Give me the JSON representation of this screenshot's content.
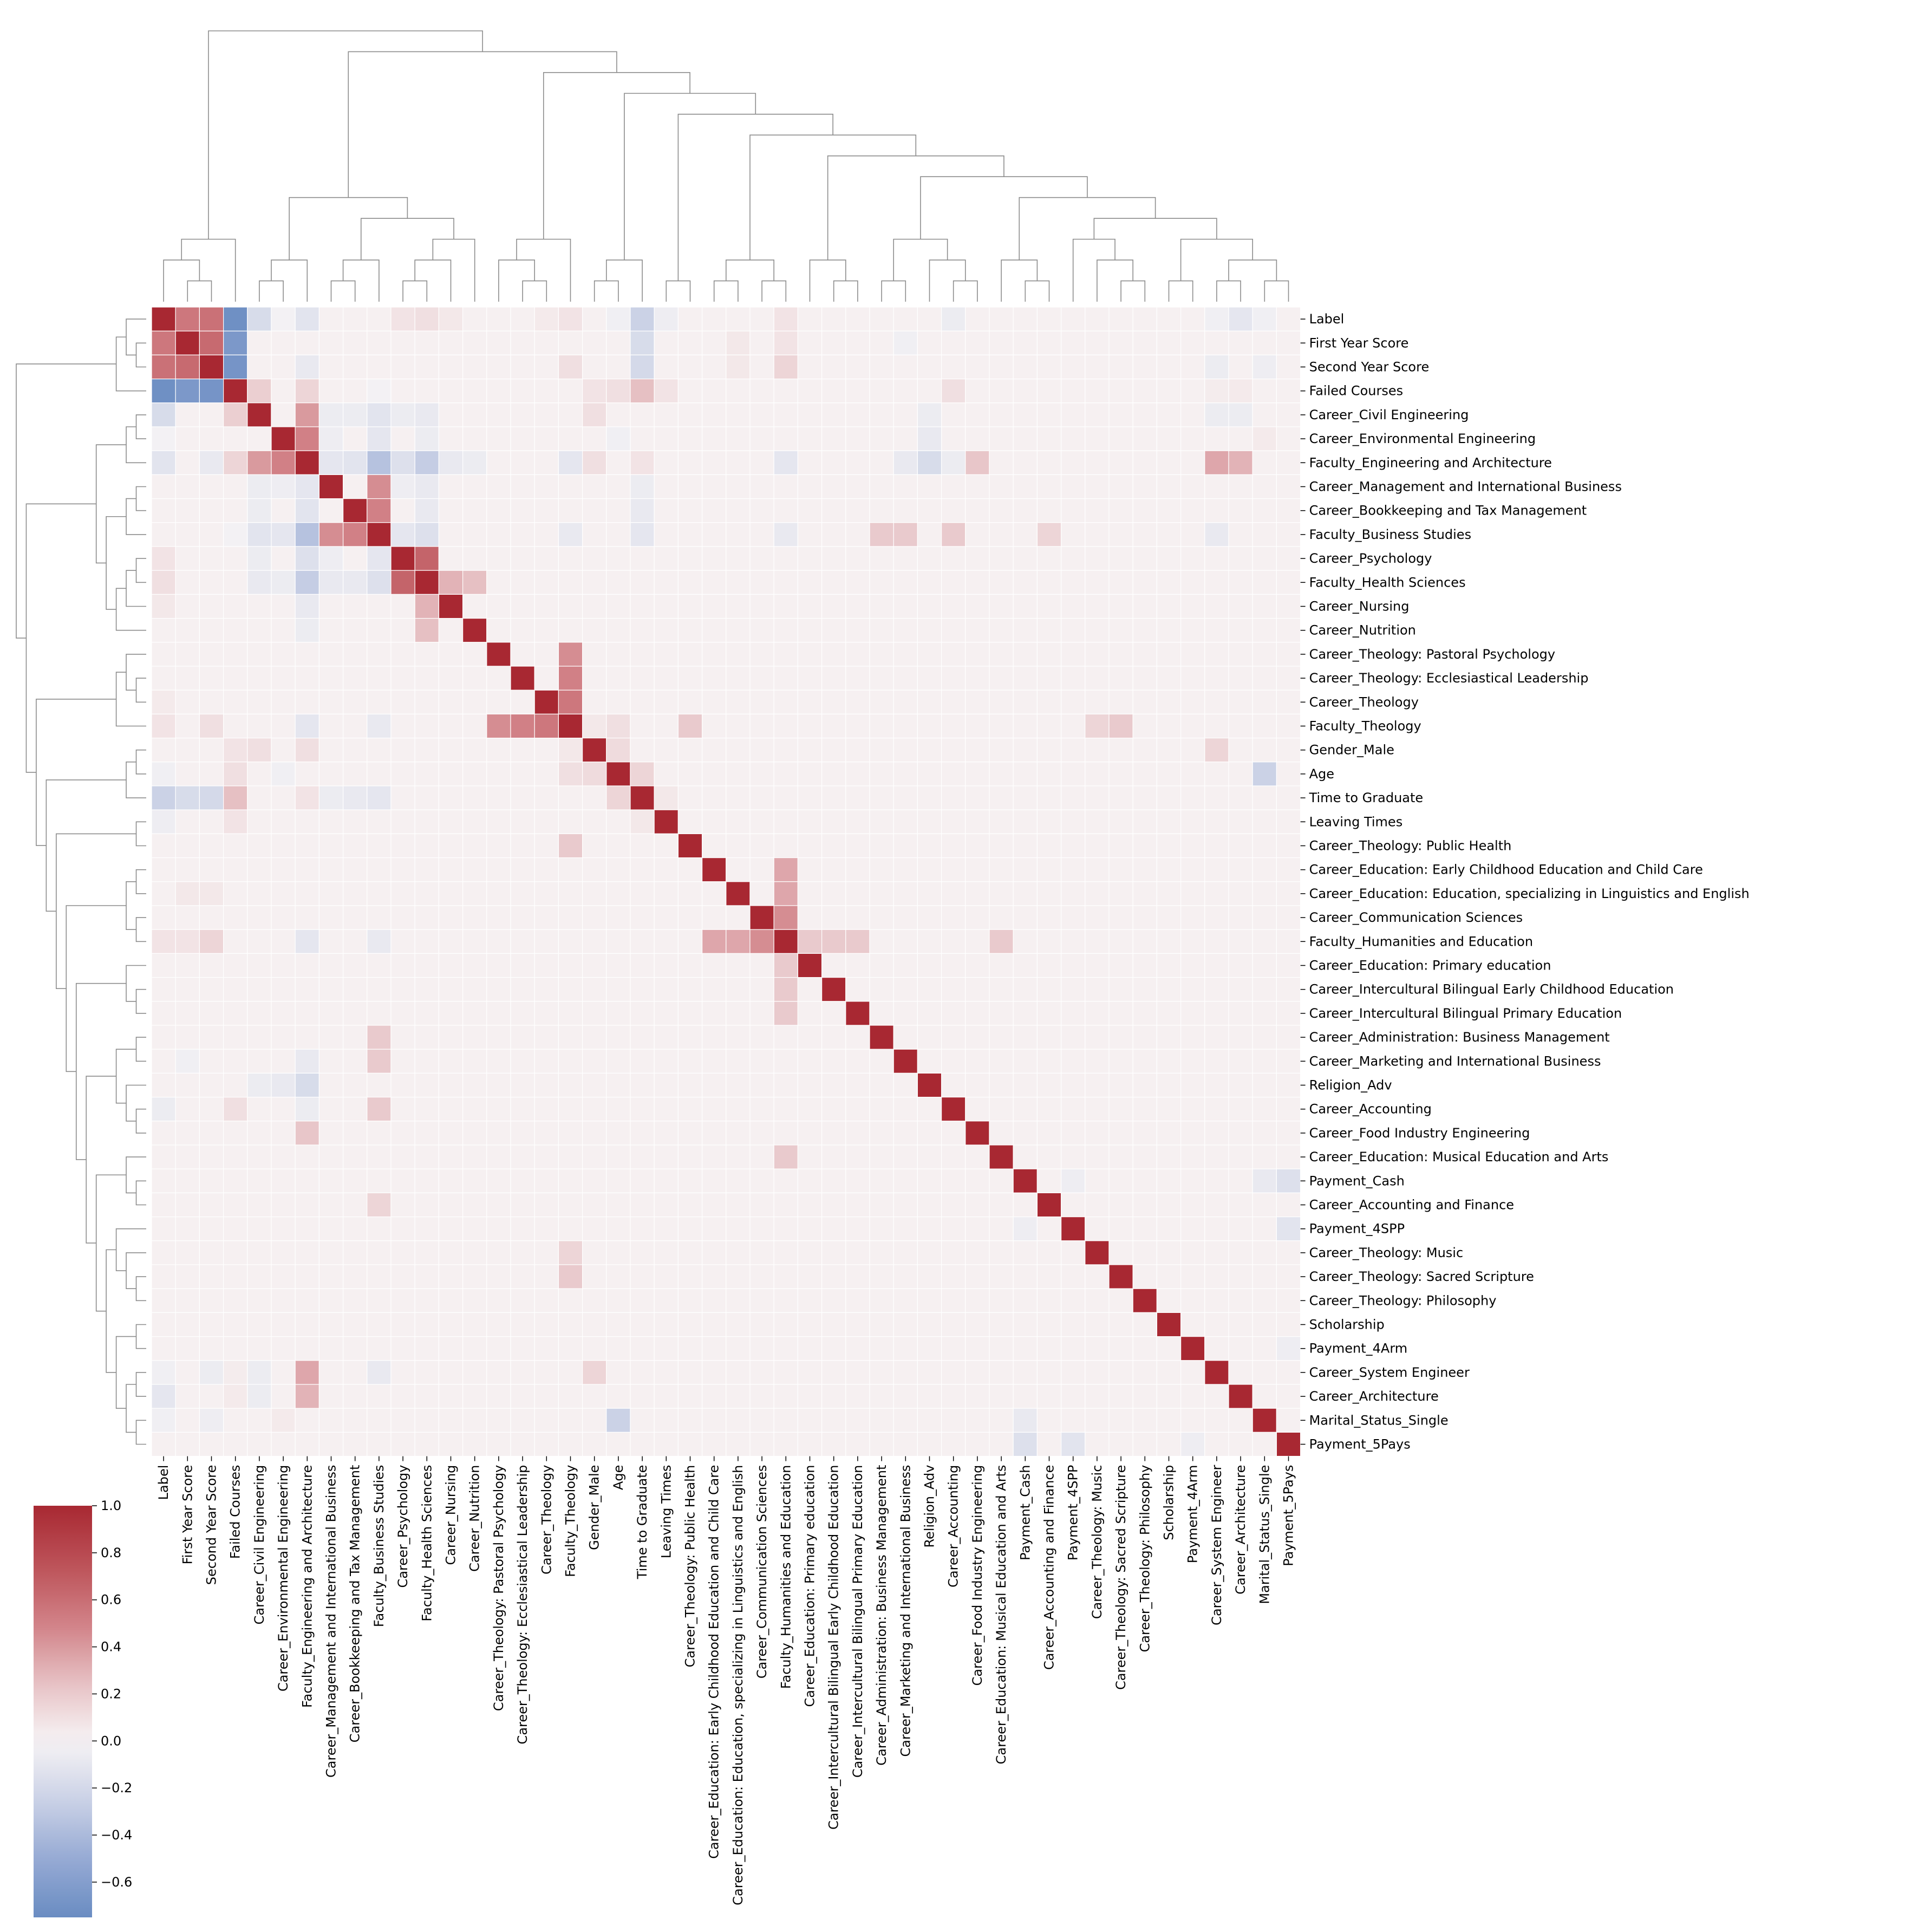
{
  "chart_data": {
    "type": "heatmap",
    "subtype": "clustermap",
    "title": "",
    "xlabel": "",
    "ylabel": "",
    "labels": [
      "Label",
      "First Year Score",
      "Second Year Score",
      "Failed Courses",
      "Career_Civil Engineering",
      "Career_Environmental Engineering",
      "Faculty_Engineering and Architecture",
      "Career_Management and International Business",
      "Career_Bookkeeping and Tax Management",
      "Faculty_Business Studies",
      "Career_Psychology",
      "Faculty_Health Sciences",
      "Career_Nursing",
      "Career_Nutrition",
      "Career_Theology: Pastoral Psychology",
      "Career_Theology: Ecclesiastical Leadership",
      "Career_Theology",
      "Faculty_Theology",
      "Gender_Male",
      "Age",
      "Time to Graduate",
      "Leaving Times",
      "Career_Theology: Public Health",
      "Career_Education: Early Childhood Education and Child Care",
      "Career_Education: Education, specializing in Linguistics and English",
      "Career_Communication Sciences",
      "Faculty_Humanities and Education",
      "Career_Education: Primary education",
      "Career_Intercultural Bilingual Early Childhood Education",
      "Career_Intercultural Bilingual Primary Education",
      "Career_Administration: Business Management",
      "Career_Marketing and International Business",
      "Religion_Adv",
      "Career_Accounting",
      "Career_Food Industry Engineering",
      "Career_Education: Musical Education and Arts",
      "Payment_Cash",
      "Career_Accounting and Finance",
      "Payment_4SPP",
      "Career_Theology: Music",
      "Career_Theology: Sacred Scripture",
      "Career_Theology: Philosophy",
      "Scholarship",
      "Payment_4Arm",
      "Career_System Engineer",
      "Career_Architecture",
      "Marital_Status_Single",
      "Payment_5Pays"
    ],
    "default_value": 0.02,
    "value_range": [
      -0.75,
      1.0
    ],
    "colormap": "vlag",
    "colorbar": {
      "ticks": [
        1.0,
        0.8,
        0.6,
        0.4,
        0.2,
        0.0,
        -0.2,
        -0.4,
        -0.6
      ],
      "tick_labels": [
        "1.0",
        "0.8",
        "0.6",
        "0.4",
        "0.2",
        "0.0",
        "−0.2",
        "−0.4",
        "−0.6"
      ]
    },
    "correlations": [
      [
        0,
        1,
        0.55
      ],
      [
        0,
        2,
        0.58
      ],
      [
        0,
        3,
        -0.72
      ],
      [
        0,
        4,
        -0.18
      ],
      [
        0,
        5,
        -0.02
      ],
      [
        0,
        6,
        -0.12
      ],
      [
        0,
        10,
        0.08
      ],
      [
        0,
        11,
        0.1
      ],
      [
        0,
        12,
        0.06
      ],
      [
        0,
        16,
        0.05
      ],
      [
        0,
        17,
        0.08
      ],
      [
        0,
        19,
        -0.04
      ],
      [
        0,
        20,
        -0.25
      ],
      [
        0,
        21,
        -0.05
      ],
      [
        0,
        26,
        0.08
      ],
      [
        0,
        33,
        -0.06
      ],
      [
        0,
        44,
        -0.04
      ],
      [
        0,
        45,
        -0.1
      ],
      [
        0,
        46,
        -0.04
      ],
      [
        1,
        2,
        0.62
      ],
      [
        1,
        3,
        -0.65
      ],
      [
        1,
        20,
        -0.18
      ],
      [
        1,
        26,
        0.08
      ],
      [
        1,
        24,
        0.06
      ],
      [
        1,
        31,
        -0.04
      ],
      [
        2,
        3,
        -0.68
      ],
      [
        2,
        20,
        -0.2
      ],
      [
        2,
        26,
        0.15
      ],
      [
        2,
        6,
        -0.08
      ],
      [
        2,
        17,
        0.1
      ],
      [
        2,
        24,
        0.06
      ],
      [
        2,
        44,
        -0.06
      ],
      [
        2,
        46,
        -0.05
      ],
      [
        3,
        4,
        0.18
      ],
      [
        3,
        6,
        0.15
      ],
      [
        3,
        9,
        -0.02
      ],
      [
        3,
        18,
        0.08
      ],
      [
        3,
        19,
        0.1
      ],
      [
        3,
        20,
        0.25
      ],
      [
        3,
        21,
        0.08
      ],
      [
        3,
        33,
        0.1
      ],
      [
        3,
        44,
        0.04
      ],
      [
        3,
        45,
        0.05
      ],
      [
        4,
        6,
        0.4
      ],
      [
        4,
        7,
        -0.06
      ],
      [
        4,
        8,
        -0.06
      ],
      [
        4,
        9,
        -0.12
      ],
      [
        4,
        10,
        -0.06
      ],
      [
        4,
        11,
        -0.08
      ],
      [
        4,
        18,
        0.1
      ],
      [
        4,
        32,
        -0.06
      ],
      [
        4,
        44,
        -0.06
      ],
      [
        4,
        45,
        -0.06
      ],
      [
        5,
        6,
        0.5
      ],
      [
        5,
        7,
        -0.05
      ],
      [
        5,
        9,
        -0.1
      ],
      [
        5,
        11,
        -0.06
      ],
      [
        5,
        32,
        -0.08
      ],
      [
        5,
        19,
        -0.04
      ],
      [
        5,
        46,
        0.05
      ],
      [
        6,
        7,
        -0.1
      ],
      [
        6,
        8,
        -0.12
      ],
      [
        6,
        9,
        -0.35
      ],
      [
        6,
        10,
        -0.15
      ],
      [
        6,
        11,
        -0.28
      ],
      [
        6,
        12,
        -0.08
      ],
      [
        6,
        13,
        -0.06
      ],
      [
        6,
        17,
        -0.1
      ],
      [
        6,
        18,
        0.1
      ],
      [
        6,
        20,
        0.08
      ],
      [
        6,
        26,
        -0.1
      ],
      [
        6,
        32,
        -0.18
      ],
      [
        6,
        34,
        0.22
      ],
      [
        6,
        44,
        0.35
      ],
      [
        6,
        45,
        0.3
      ],
      [
        6,
        31,
        -0.08
      ],
      [
        6,
        33,
        -0.06
      ],
      [
        7,
        9,
        0.45
      ],
      [
        7,
        10,
        -0.05
      ],
      [
        7,
        11,
        -0.08
      ],
      [
        7,
        20,
        -0.06
      ],
      [
        8,
        9,
        0.5
      ],
      [
        8,
        11,
        -0.08
      ],
      [
        8,
        20,
        -0.08
      ],
      [
        9,
        10,
        -0.1
      ],
      [
        9,
        11,
        -0.15
      ],
      [
        9,
        17,
        -0.08
      ],
      [
        9,
        20,
        -0.1
      ],
      [
        9,
        26,
        -0.08
      ],
      [
        9,
        30,
        0.2
      ],
      [
        9,
        31,
        0.2
      ],
      [
        9,
        33,
        0.2
      ],
      [
        9,
        37,
        0.15
      ],
      [
        9,
        44,
        -0.08
      ],
      [
        10,
        11,
        0.65
      ],
      [
        11,
        12,
        0.3
      ],
      [
        11,
        13,
        0.25
      ],
      [
        14,
        17,
        0.45
      ],
      [
        15,
        17,
        0.5
      ],
      [
        16,
        17,
        0.55
      ],
      [
        17,
        22,
        0.2
      ],
      [
        17,
        39,
        0.15
      ],
      [
        17,
        40,
        0.2
      ],
      [
        17,
        18,
        0.06
      ],
      [
        17,
        19,
        0.1
      ],
      [
        18,
        19,
        0.12
      ],
      [
        18,
        44,
        0.15
      ],
      [
        19,
        20,
        0.15
      ],
      [
        19,
        46,
        -0.25
      ],
      [
        20,
        21,
        0.06
      ],
      [
        23,
        26,
        0.35
      ],
      [
        24,
        26,
        0.35
      ],
      [
        25,
        26,
        0.45
      ],
      [
        26,
        27,
        0.2
      ],
      [
        26,
        28,
        0.2
      ],
      [
        26,
        29,
        0.2
      ],
      [
        26,
        35,
        0.2
      ],
      [
        36,
        38,
        -0.05
      ],
      [
        36,
        46,
        -0.08
      ],
      [
        36,
        47,
        -0.15
      ],
      [
        38,
        47,
        -0.12
      ],
      [
        43,
        47,
        -0.05
      ]
    ]
  }
}
